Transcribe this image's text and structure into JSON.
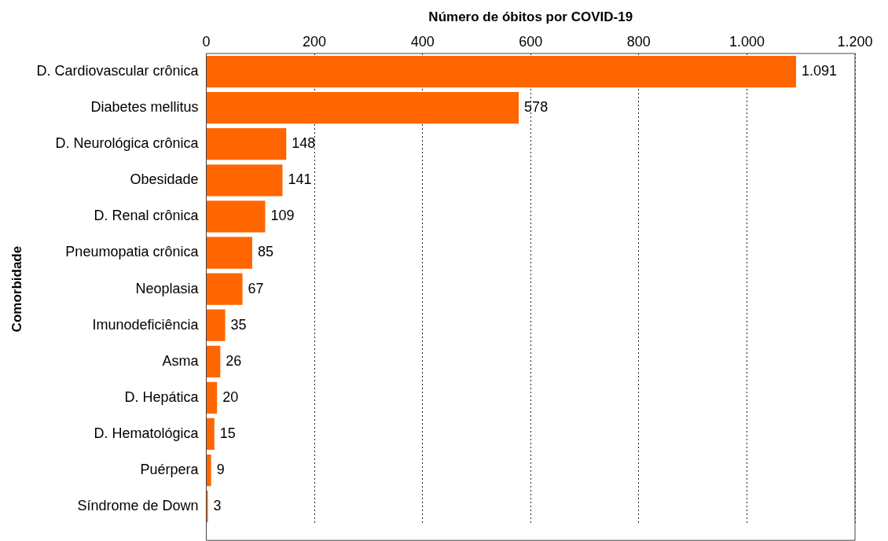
{
  "chart_data": {
    "type": "bar",
    "orientation": "horizontal",
    "xlabel": "Número de óbitos por COVID-19",
    "ylabel": "Comorbidade",
    "categories": [
      "D. Cardiovascular crônica",
      "Diabetes mellitus",
      "D. Neurológica crônica",
      "Obesidade",
      "D. Renal crônica",
      "Pneumopatia crônica",
      "Neoplasia",
      "Imunodeficiência",
      "Asma",
      "D. Hepática",
      "D. Hematológica",
      "Puérpera",
      "Síndrome de Down"
    ],
    "values": [
      1091,
      578,
      148,
      141,
      109,
      85,
      67,
      35,
      26,
      20,
      15,
      9,
      3
    ],
    "value_labels": [
      "1.091",
      "578",
      "148",
      "141",
      "109",
      "85",
      "67",
      "35",
      "26",
      "20",
      "15",
      "9",
      "3"
    ],
    "color": "#ff6600",
    "xlim": [
      0,
      1200
    ],
    "xticks": [
      0,
      200,
      400,
      600,
      800,
      {
        "value": 1000,
        "label": "1.000"
      },
      {
        "value": 1200,
        "label": "1.200"
      }
    ],
    "grid": "x"
  }
}
